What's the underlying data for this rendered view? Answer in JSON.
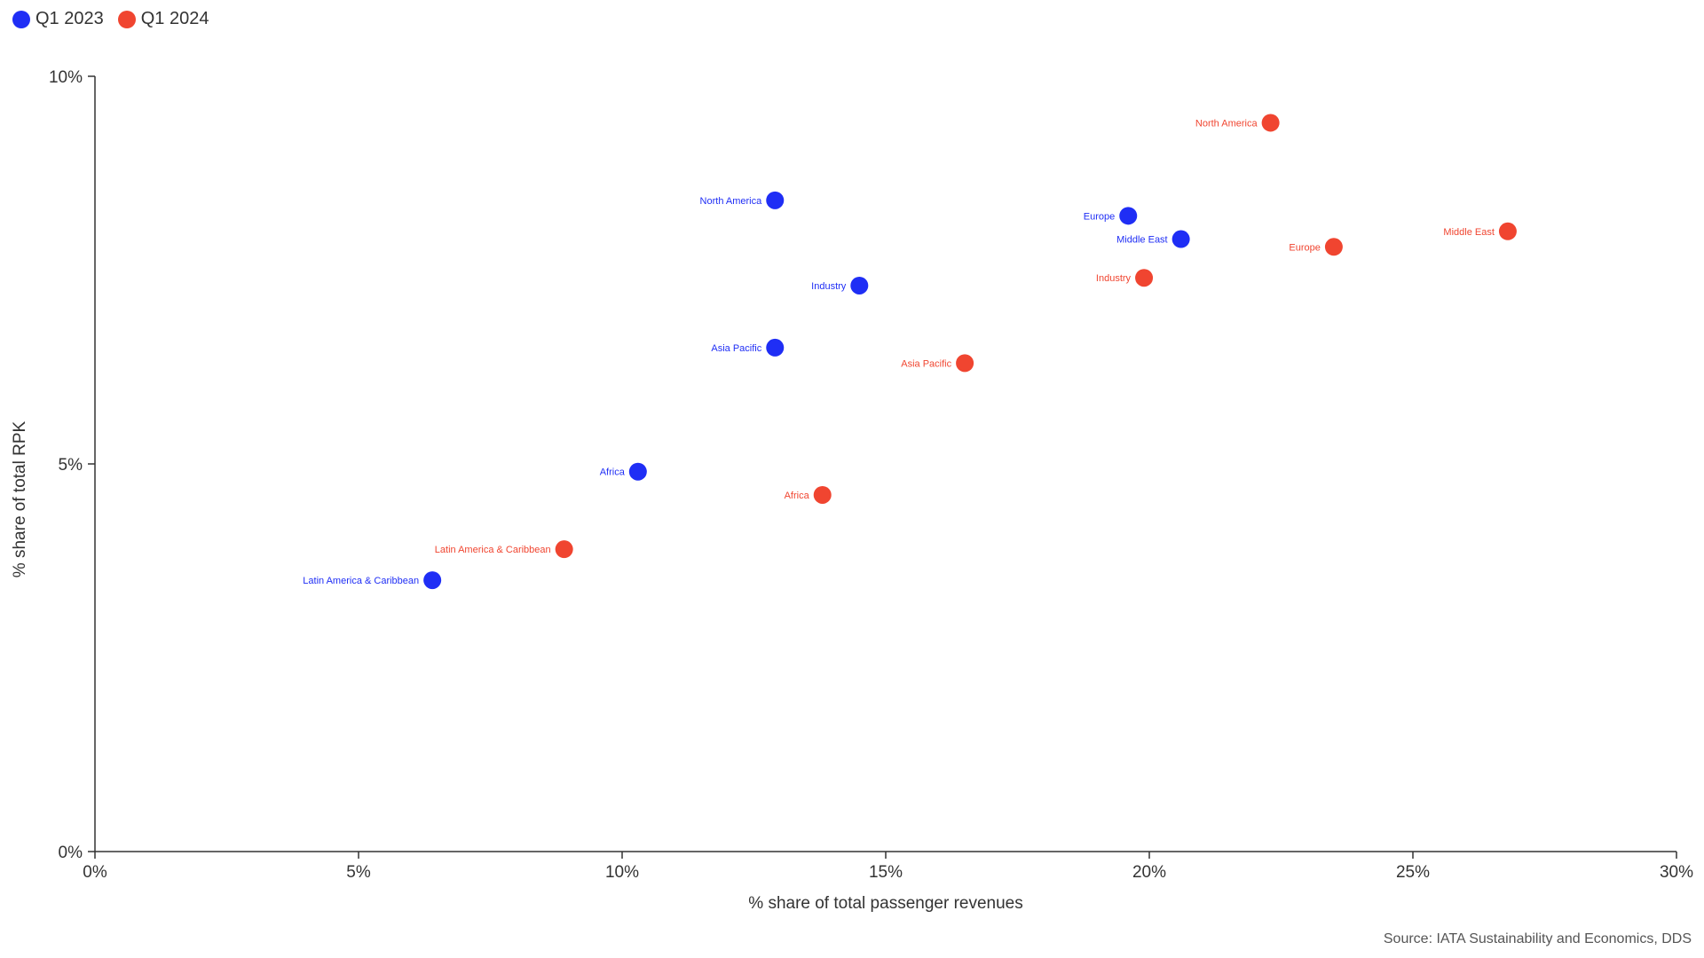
{
  "chart_data": {
    "type": "scatter",
    "title": "",
    "xlabel": "% share of total passenger revenues",
    "ylabel": "% share of total RPK",
    "xlim": [
      0,
      30
    ],
    "ylim": [
      0,
      10
    ],
    "x_ticks": [
      0,
      5,
      10,
      15,
      20,
      25,
      30
    ],
    "x_tick_labels": [
      "0%",
      "5%",
      "10%",
      "15%",
      "20%",
      "25%",
      "30%"
    ],
    "y_ticks": [
      0,
      5,
      10
    ],
    "y_tick_labels": [
      "0%",
      "5%",
      "10%"
    ],
    "grid": false,
    "legend_position": "top-left",
    "series": [
      {
        "name": "Q1 2023",
        "color": "#1f2ef5",
        "points": [
          {
            "label": "North America",
            "x": 12.9,
            "y": 8.4
          },
          {
            "label": "Europe",
            "x": 19.6,
            "y": 8.2
          },
          {
            "label": "Middle East",
            "x": 20.6,
            "y": 7.9
          },
          {
            "label": "Industry",
            "x": 14.5,
            "y": 7.3
          },
          {
            "label": "Asia Pacific",
            "x": 12.9,
            "y": 6.5
          },
          {
            "label": "Africa",
            "x": 10.3,
            "y": 4.9
          },
          {
            "label": "Latin America & Caribbean",
            "x": 6.4,
            "y": 3.5
          }
        ]
      },
      {
        "name": "Q1 2024",
        "color": "#f04530",
        "points": [
          {
            "label": "North America",
            "x": 22.3,
            "y": 9.4
          },
          {
            "label": "Middle East",
            "x": 26.8,
            "y": 8.0
          },
          {
            "label": "Europe",
            "x": 23.5,
            "y": 7.8
          },
          {
            "label": "Industry",
            "x": 19.9,
            "y": 7.4
          },
          {
            "label": "Asia Pacific",
            "x": 16.5,
            "y": 6.3
          },
          {
            "label": "Africa",
            "x": 13.8,
            "y": 4.6
          },
          {
            "label": "Latin America & Caribbean",
            "x": 8.9,
            "y": 3.9
          }
        ]
      }
    ]
  },
  "source": "Source: IATA Sustainability and Economics, DDS"
}
